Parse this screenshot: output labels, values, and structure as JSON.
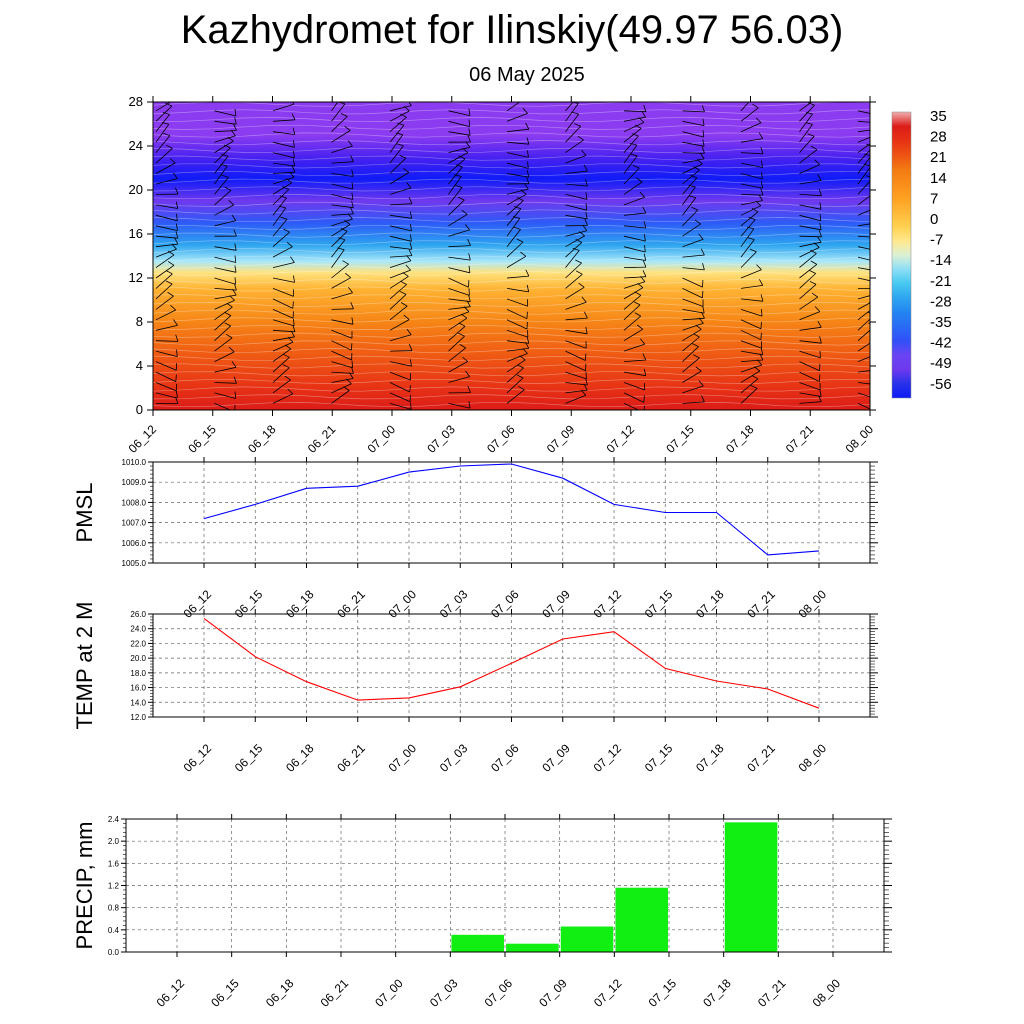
{
  "header": {
    "title": "Kazhydromet for Ilinskiy(49.97 56.03)",
    "date": "06 May 2025"
  },
  "time_labels": [
    "06_12",
    "06_15",
    "06_18",
    "06_21",
    "07_00",
    "07_03",
    "07_06",
    "07_09",
    "07_12",
    "07_15",
    "07_18",
    "07_21",
    "08_00"
  ],
  "chart_data": [
    {
      "type": "heatmap",
      "name": "temperature-height cross-section with wind barbs",
      "x": [
        "06_12",
        "06_15",
        "06_18",
        "06_21",
        "07_00",
        "07_03",
        "07_06",
        "07_09",
        "07_12",
        "07_15",
        "07_18",
        "07_21",
        "08_00"
      ],
      "yticks": [
        0,
        4,
        8,
        12,
        16,
        20,
        24,
        28
      ],
      "ylim": [
        0,
        28
      ],
      "colorbar_labels": [
        "35",
        "28",
        "21",
        "14",
        "7",
        "0",
        "-7",
        "-14",
        "-21",
        "-28",
        "-35",
        "-42",
        "-49",
        "-56"
      ],
      "colorbar_range": [
        -60,
        40
      ],
      "temperature_profile": [
        {
          "z": 0,
          "t": 35
        },
        {
          "z": 2,
          "t": 30
        },
        {
          "z": 5,
          "t": 24
        },
        {
          "z": 8,
          "t": 17
        },
        {
          "z": 11,
          "t": 6
        },
        {
          "z": 12.5,
          "t": -4
        },
        {
          "z": 13.5,
          "t": -13
        },
        {
          "z": 15,
          "t": -25
        },
        {
          "z": 17,
          "t": -38
        },
        {
          "z": 19,
          "t": -50
        },
        {
          "z": 21,
          "t": -60
        },
        {
          "z": 23,
          "t": -62
        },
        {
          "z": 25,
          "t": -56
        },
        {
          "z": 28,
          "t": -50
        }
      ],
      "colors": {
        "hot": "#d81818",
        "orange": "#f27a12",
        "yellow": "#fff6b0",
        "cyan": "#46c8f0",
        "blue": "#1830e8",
        "darkblue": "#0a10ff",
        "violet": "#8c3cf0"
      }
    },
    {
      "type": "line",
      "ylabel": "PMSL",
      "x": [
        "06_12",
        "06_15",
        "06_18",
        "06_21",
        "07_00",
        "07_03",
        "07_06",
        "07_09",
        "07_12",
        "07_15",
        "07_18",
        "07_21",
        "08_00"
      ],
      "values": [
        1007.2,
        1007.9,
        1008.7,
        1008.8,
        1009.5,
        1009.8,
        1009.9,
        1009.2,
        1007.9,
        1007.5,
        1007.5,
        1005.4,
        1005.6
      ],
      "ylim": [
        1005.0,
        1010.0
      ],
      "yticks": [
        "1005.0",
        "1006.0",
        "1007.0",
        "1008.0",
        "1009.0",
        "1010.0"
      ],
      "grid": true,
      "color": "#0000ff"
    },
    {
      "type": "line",
      "ylabel": "TEMP at 2 M",
      "x": [
        "06_12",
        "06_15",
        "06_18",
        "06_21",
        "07_00",
        "07_03",
        "07_06",
        "07_09",
        "07_12",
        "07_15",
        "07_18",
        "07_21",
        "08_00"
      ],
      "values": [
        25.4,
        20.2,
        16.8,
        14.3,
        14.6,
        16.1,
        19.3,
        22.6,
        23.6,
        18.6,
        16.9,
        15.8,
        13.2
      ],
      "ylim": [
        12.0,
        26.0
      ],
      "yticks": [
        "12.0",
        "14.0",
        "16.0",
        "18.0",
        "20.0",
        "22.0",
        "24.0",
        "26.0"
      ],
      "grid": true,
      "color": "#ff0000"
    },
    {
      "type": "bar",
      "ylabel": "PRECIP, mm",
      "x": [
        "06_12",
        "06_15",
        "06_18",
        "06_21",
        "07_00",
        "07_03",
        "07_06",
        "07_09",
        "07_12",
        "07_15",
        "07_18",
        "07_21",
        "08_00"
      ],
      "values": [
        0,
        0,
        0,
        0,
        0,
        0,
        0.31,
        0.15,
        0.46,
        1.16,
        0,
        2.34,
        0
      ],
      "ylim": [
        0,
        2.4
      ],
      "yticks": [
        "0.0",
        "0.4",
        "0.8",
        "1.2",
        "1.6",
        "2.0",
        "2.4"
      ],
      "grid": true,
      "color": "#11ee11"
    }
  ]
}
